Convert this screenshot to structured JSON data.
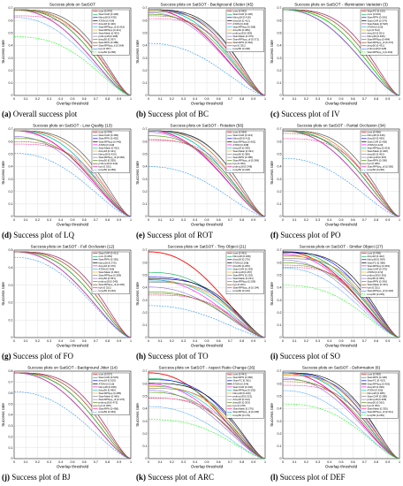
{
  "colors": [
    "#ff0000",
    "#00b050",
    "#0000ff",
    "#000000",
    "#ff00ff",
    "#00cccc",
    "#ffa500",
    "#7f7f7f",
    "#9370db",
    "#4c9900",
    "#8b4513",
    "#ff1493",
    "#1e90ff",
    "#00ff00",
    "#ff7f50",
    "#00cc00"
  ],
  "chart_data": [
    {
      "type": "line",
      "caption_label": "(a)",
      "caption_text": "Overall success plot",
      "title": "Success plots on SatSOT",
      "xlabel": "Overlap threshold",
      "ylabel": "Success rate",
      "xlim": [
        0,
        1
      ],
      "ylim": [
        0,
        0.7
      ],
      "xticks": [
        "0",
        "0.1",
        "0.2",
        "0.3",
        "0.4",
        "0.5",
        "0.6",
        "0.7",
        "0.8",
        "0.9",
        "1"
      ],
      "yticks": [
        "0",
        "0.1",
        "0.2",
        "0.3",
        "0.4",
        "0.5",
        "0.6",
        "0.7"
      ],
      "legend": [
        "ours [0.475]",
        "SiamCAR [0.448]",
        "fdimp18 [0.439]",
        "ATOM [0.434]",
        "dimp18 [0.430]",
        "SiamRPNpp_dl [0.415]",
        "SiamRPNpp [0.411]",
        "SiamMask [0.402]",
        "prdimp18 [0.398]",
        "dimp50 [0.397]",
        "SiamRPN [0.388]",
        "SiamRPNpp_lt [0.364]",
        "kys [0.357]",
        "tomp50 [0.268]"
      ]
    },
    {
      "type": "line",
      "caption_label": "(b)",
      "caption_text": "Success plot of BC",
      "title": "Success plots on SatSOT - Background Clutter (45)",
      "xlabel": "Overlap threshold",
      "ylabel": "Success rate",
      "xlim": [
        0,
        1
      ],
      "ylim": [
        0,
        0.7
      ],
      "xticks": [
        "0",
        "0.1",
        "0.2",
        "0.3",
        "0.4",
        "0.5",
        "0.6",
        "0.7",
        "0.8",
        "0.9",
        "1"
      ],
      "yticks": [
        "0",
        "0.1",
        "0.2",
        "0.3",
        "0.4",
        "0.5",
        "0.6",
        "0.7"
      ],
      "legend": [
        "ours [0.462]",
        "SiamCAR [0.426]",
        "fdimp18 [0.418]",
        "dimp18 [0.412]",
        "ATOM [0.403]",
        "SiamRPNpp [0.398]",
        "dimp50 [0.389]",
        "prdimp18 [0.383]",
        "SiamMask [0.379]",
        "SiamRPNpp_dl [0.371]",
        "SiamRPN [0.364]",
        "kys [0.351]",
        "tomp50 [0.238]"
      ]
    },
    {
      "type": "line",
      "caption_label": "(c)",
      "caption_text": "Success plot of IV",
      "title": "Success plots on SatSOT - Illumination Variation (3)",
      "xlabel": "Overlap threshold",
      "ylabel": "Success rate",
      "xlim": [
        0,
        1
      ],
      "ylim": [
        0,
        0.7
      ],
      "xticks": [
        "0",
        "0.1",
        "0.2",
        "0.3",
        "0.4",
        "0.5",
        "0.6",
        "0.7",
        "0.8",
        "0.9",
        "1"
      ],
      "yticks": [
        "0",
        "0.1",
        "0.2",
        "0.3",
        "0.4",
        "0.5",
        "0.6",
        "0.7"
      ],
      "legend": [
        "SiamFC [0.610]",
        "ours [0.604]",
        "SiamRPN [0.591]",
        "SiamCAR [0.574]",
        "SiamMask [0.528]",
        "ATOM [0.523]",
        "kys [0.514]",
        "dimp18 [0.501]",
        "fdimp18 [0.496]",
        "SiamRPNpp [0.484]",
        "SiamRPNpp_dl [0.473]",
        "dimp50 [0.431]",
        "prdimp18 [0.428]",
        "SiamRPNpp_lt [0.402]"
      ]
    },
    {
      "type": "line",
      "caption_label": "(d)",
      "caption_text": "Success plot of LQ",
      "title": "Success plots on SatSOT - Low Quality (13)",
      "xlabel": "Overlap threshold",
      "ylabel": "Success rate",
      "xlim": [
        0,
        1
      ],
      "ylim": [
        0,
        0.7
      ],
      "xticks": [
        "0",
        "0.1",
        "0.2",
        "0.3",
        "0.4",
        "0.5",
        "0.6",
        "0.7",
        "0.8",
        "0.9",
        "1"
      ],
      "yticks": [
        "0",
        "0.1",
        "0.2",
        "0.3",
        "0.4",
        "0.5",
        "0.6",
        "0.7"
      ],
      "legend": [
        "ours [0.478]",
        "SiamCAR [0.469]",
        "SiamRPN [0.452]",
        "SiamRPNpp [0.445]",
        "ATOM [0.440]",
        "SiamMask [0.432]",
        "dimp18 [0.431]",
        "fdimp18 [0.420]",
        "SiamRPNpp_dl [0.366]",
        "dimp50 [0.359]",
        "prdimp18 [0.342]",
        "kys [0.331]",
        "tomp50 [0.289]"
      ]
    },
    {
      "type": "line",
      "caption_label": "(e)",
      "caption_text": "Success plot of ROT",
      "title": "Success plots on SatSOT - Rotation (56)",
      "xlabel": "Overlap threshold",
      "ylabel": "Success rate",
      "xlim": [
        0,
        1
      ],
      "ylim": [
        0,
        0.7
      ],
      "xticks": [
        "0",
        "0.1",
        "0.2",
        "0.3",
        "0.4",
        "0.5",
        "0.6",
        "0.7",
        "0.8",
        "0.9",
        "1"
      ],
      "yticks": [
        "0",
        "0.1",
        "0.2",
        "0.3",
        "0.4",
        "0.5",
        "0.6",
        "0.7"
      ],
      "legend": [
        "ours [0.464]",
        "SiamCAR [0.413]",
        "fdimp18 [0.411]",
        "SiamRPNpp [0.402]",
        "ATOM [0.398]",
        "dimp18 [0.395]",
        "SiamMask [0.391]",
        "dimp50 [0.389]",
        "SiamRPN [0.385]",
        "SiamRPNpp_dl [0.369]",
        "kys [0.352]",
        "prdimp18 [0.348]",
        "tomp50 [0.228]"
      ]
    },
    {
      "type": "line",
      "caption_label": "(f)",
      "caption_text": "Success plot of PO",
      "title": "Success plots on SatSOT - Partial Occlusion (34)",
      "xlabel": "Overlap threshold",
      "ylabel": "Success rate",
      "xlim": [
        0,
        1
      ],
      "ylim": [
        0,
        0.7
      ],
      "xticks": [
        "0",
        "0.1",
        "0.2",
        "0.3",
        "0.4",
        "0.5",
        "0.6",
        "0.7",
        "0.8",
        "0.9",
        "1"
      ],
      "yticks": [
        "0",
        "0.1",
        "0.2",
        "0.3",
        "0.4",
        "0.5",
        "0.6",
        "0.7"
      ],
      "legend": [
        "ours [0.466]",
        "fdimp18 [0.436]",
        "dimp18 [0.430]",
        "SiamCAR [0.428]",
        "ATOM [0.423]",
        "SiamRPNpp [0.419]",
        "SiamMask [0.408]",
        "dimp50 [0.402]",
        "prdimp18 [0.397]",
        "SiamRPN [0.390]",
        "kys [0.380]",
        "SiamRPNpp_dl [0.356]",
        "tomp50 [0.266]"
      ]
    },
    {
      "type": "line",
      "caption_label": "(g)",
      "caption_text": "Success plot of FO",
      "title": "Success plots on SatSOT - Full Occlusion (12)",
      "xlabel": "Overlap threshold",
      "ylabel": "Success rate",
      "xlim": [
        0,
        1
      ],
      "ylim": [
        0,
        0.5
      ],
      "xticks": [
        "0",
        "0.1",
        "0.2",
        "0.3",
        "0.4",
        "0.5",
        "0.6",
        "0.7",
        "0.8",
        "0.9",
        "1"
      ],
      "yticks": [
        "0",
        "0.1",
        "0.2",
        "0.3",
        "0.4",
        "0.5"
      ],
      "legend": [
        "SiamCAR [0.411]",
        "ours [0.383]",
        "SiamRPN [0.382]",
        "fdimp18 [0.375]",
        "dimp18 [0.370]",
        "ATOM [0.365]",
        "SiamMask [0.362]",
        "SiamRPNpp [0.359]",
        "dimp50 [0.351]",
        "prdimp18 [0.340]",
        "SiamRPNpp_dl [0.330]",
        "kys [0.321]",
        "tomp50 [0.262]"
      ]
    },
    {
      "type": "line",
      "caption_label": "(h)",
      "caption_text": "Success plot of TO",
      "title": "Success plots on SatSOT - Tiny Object (21)",
      "xlabel": "Overlap threshold",
      "ylabel": "Success rate",
      "xlim": [
        0,
        1
      ],
      "ylim": [
        0,
        0.7
      ],
      "xticks": [
        "0",
        "0.1",
        "0.2",
        "0.3",
        "0.4",
        "0.5",
        "0.6",
        "0.7",
        "0.8",
        "0.9",
        "1"
      ],
      "yticks": [
        "0",
        "0.1",
        "0.2",
        "0.3",
        "0.4",
        "0.5",
        "0.6",
        "0.7"
      ],
      "legend": [
        "ours [0.461]",
        "fdimp18 [0.298]",
        "dimp18 [0.276]",
        "ATOM [0.268]",
        "dimp50 [0.265]",
        "SiamCAR [0.263]",
        "prdimp18 [0.257]",
        "SiamRPN [0.253]",
        "SiamMask [0.231]",
        "SiamRPNpp [0.209]",
        "kys [0.201]",
        "SiamRPNpp_dl [0.194]",
        "tomp50 [0.146]"
      ]
    },
    {
      "type": "line",
      "caption_label": "(i)",
      "caption_text": "Success plot of SO",
      "title": "Success plots on SatSOT - Similar Object (27)",
      "xlabel": "Overlap threshold",
      "ylabel": "Success rate",
      "xlim": [
        0,
        1
      ],
      "ylim": [
        0,
        0.7
      ],
      "xticks": [
        "0",
        "0.1",
        "0.2",
        "0.3",
        "0.4",
        "0.5",
        "0.6",
        "0.7",
        "0.8",
        "0.9",
        "1"
      ],
      "yticks": [
        "0",
        "0.1",
        "0.2",
        "0.3",
        "0.4",
        "0.5",
        "0.6",
        "0.7"
      ],
      "legend": [
        "ours [0.438]",
        "dimp18 [0.402]",
        "fdimp18 [0.399]",
        "SiamFC [0.388]",
        "SiamRPNpp [0.381]",
        "SiamCAR [0.375]",
        "ATOM [0.372]",
        "prdimp18 [0.361]",
        "dimp50 [0.355]",
        "SiamRPN [0.342]",
        "SiamMask [0.331]",
        "kys [0.321]",
        "SiamRPNpp_dl [0.318]",
        "tomp50 [0.239]"
      ]
    },
    {
      "type": "line",
      "caption_label": "(j)",
      "caption_text": "Success plot of BJ",
      "title": "Success plots on SatSOT - Background Jitter (14)",
      "xlabel": "Overlap threshold",
      "ylabel": "Success rate",
      "xlim": [
        0,
        1
      ],
      "ylim": [
        0,
        0.8
      ],
      "xticks": [
        "0",
        "0.1",
        "0.2",
        "0.3",
        "0.4",
        "0.5",
        "0.6",
        "0.7",
        "0.8",
        "0.9",
        "1"
      ],
      "yticks": [
        "0",
        "0.1",
        "0.2",
        "0.3",
        "0.4",
        "0.5",
        "0.6",
        "0.7",
        "0.8"
      ],
      "legend": [
        "ours [0.537]",
        "SiamCAR [0.523]",
        "dimp18 [0.519]",
        "ATOM [0.510]",
        "fdimp18 [0.498]",
        "dimp50 [0.490]",
        "SiamRPNpp [0.485]",
        "SiamMask [0.480]",
        "SiamRPNpp_dl [0.476]",
        "prdimp18 [0.472]",
        "kys [0.465]",
        "SiamRPN [0.458]",
        "tomp50 [0.349]"
      ]
    },
    {
      "type": "line",
      "caption_label": "(k)",
      "caption_text": "Success plot of ARC",
      "title": "Success plots on SatSOT - Aspect Ratio Change (26)",
      "xlabel": "Overlap threshold",
      "ylabel": "Success rate",
      "xlim": [
        0,
        1
      ],
      "ylim": [
        0,
        0.7
      ],
      "xticks": [
        "0",
        "0.1",
        "0.2",
        "0.3",
        "0.4",
        "0.5",
        "0.6",
        "0.7",
        "0.8",
        "0.9",
        "1"
      ],
      "yticks": [
        "0",
        "0.1",
        "0.2",
        "0.3",
        "0.4",
        "0.5",
        "0.6",
        "0.7"
      ],
      "legend": [
        "ours [0.441]",
        "SiamRPN [0.366]",
        "SiamFC [0.361]",
        "ATOM [0.344]",
        "SiamCAR [0.340]",
        "SiamRPNpp [0.332]",
        "fdimp18 [0.329]",
        "prdimp18 [0.321]",
        "dimp18 [0.313]",
        "dimp50 [0.303]",
        "kys [0.278]",
        "SiamMask [0.276]",
        "SiamRPNpp_dl [0.238]",
        "tomp50 [0.179]"
      ]
    },
    {
      "type": "line",
      "caption_label": "(l)",
      "caption_text": "Success plot of DEF",
      "title": "Success plots on SatSOT - Deformation (6)",
      "xlabel": "Overlap threshold",
      "ylabel": "Success rate",
      "xlim": [
        0,
        1
      ],
      "ylim": [
        0,
        0.7
      ],
      "xticks": [
        "0",
        "0.1",
        "0.2",
        "0.3",
        "0.4",
        "0.5",
        "0.6",
        "0.7",
        "0.8",
        "0.9",
        "1"
      ],
      "yticks": [
        "0",
        "0.1",
        "0.2",
        "0.3",
        "0.4",
        "0.5",
        "0.6",
        "0.7"
      ],
      "legend": [
        "ours [0.459]",
        "SiamRPN [0.436]",
        "SiamFC [0.413]",
        "SiamRPNpp [0.402]",
        "dimp18 [0.399]",
        "ATOM [0.392]",
        "fdimp18 [0.385]",
        "SiamCAR [0.380]",
        "prdimp18 [0.368]",
        "dimp50 [0.362]",
        "kys [0.352]",
        "SiamMask [0.335]",
        "SiamRPNpp_dl [0.311]",
        "tomp50 [0.250]"
      ]
    }
  ]
}
